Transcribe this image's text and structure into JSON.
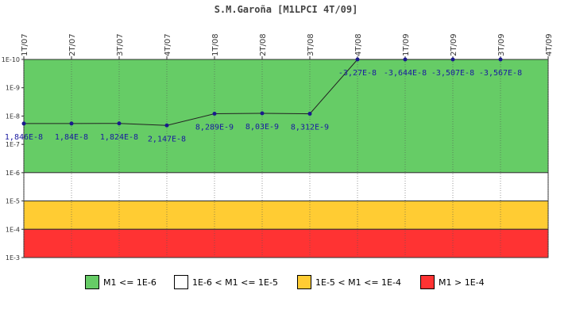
{
  "chart_data": {
    "type": "line",
    "title": "S.M.Garoña [M1LPCI 4T/09]",
    "y_scale": "log",
    "y_axis_direction": "reversed",
    "y_ticks": [
      "1E-10",
      "1E-9",
      "1E-8",
      "1E-7",
      "1E-6",
      "1E-5",
      "1E-4",
      "1E-3"
    ],
    "categories": [
      "1T/07",
      "2T/07",
      "3T/07",
      "4T/07",
      "1T/08",
      "2T/08",
      "3T/08",
      "4T/08",
      "1T/09",
      "2T/09",
      "3T/09",
      "4T/09"
    ],
    "series": [
      {
        "values": [
          1.846e-08,
          1.84e-08,
          1.824e-08,
          2.147e-08,
          8.289e-09,
          8.03e-09,
          8.312e-09,
          -3.27e-08,
          -3.644e-08,
          -3.507e-08,
          -3.567e-08,
          null
        ],
        "labels": [
          "1,846E-8",
          "1,84E-8",
          "1,824E-8",
          "2,147E-8",
          "8,289E-9",
          "8,03E-9",
          "8,312E-9",
          "-3,27E-8",
          "-3,644E-8",
          "-3,507E-8",
          "-3,567E-8",
          ""
        ],
        "color": "#1a1a8c"
      }
    ],
    "bands": [
      {
        "from": 1e-10,
        "to": 1e-06,
        "color": "#66cc66",
        "label": "M1 <= 1E-6"
      },
      {
        "from": 1e-06,
        "to": 1e-05,
        "color": "#ffffff",
        "label": "1E-6 < M1 <= 1E-5"
      },
      {
        "from": 1e-05,
        "to": 0.0001,
        "color": "#ffcc33",
        "label": "1E-5 < M1 <= 1E-4"
      },
      {
        "from": 0.0001,
        "to": 0.001,
        "color": "#ff3333",
        "label": "M1 > 1E-4"
      }
    ],
    "legend_position": "bottom",
    "grid": "vertical"
  }
}
